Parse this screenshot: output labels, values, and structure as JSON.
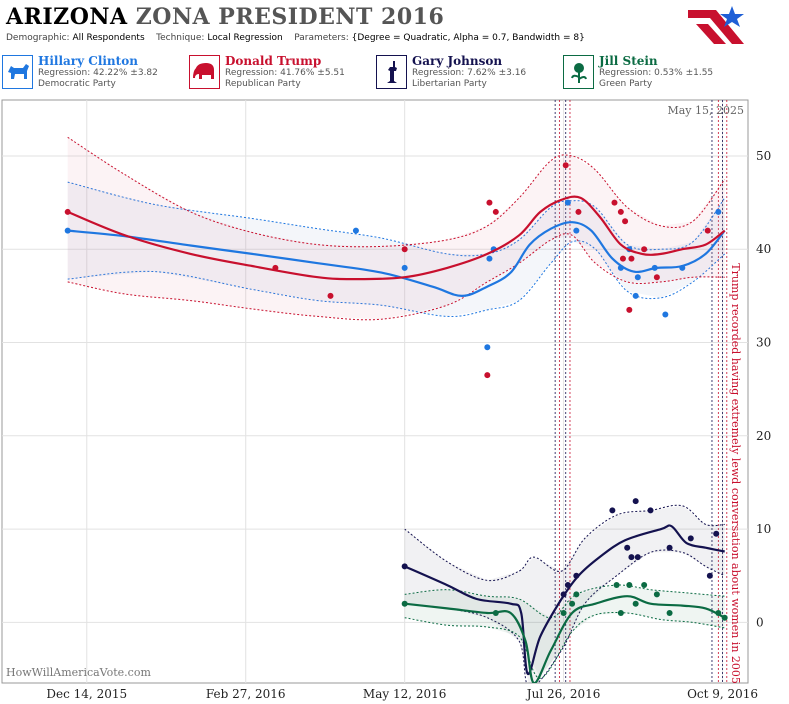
{
  "header": {
    "state": "ARIZONA",
    "title_rest": "ZONA PRESIDENT 2016",
    "demographic_label": "Demographic:",
    "demographic": "All Respondents",
    "technique_label": "Technique:",
    "technique": "Local Regression",
    "parameters_label": "Parameters:",
    "parameters": "{Degree = Quadratic, Alpha = 0.7, Bandwidth = 8}"
  },
  "candidates": [
    {
      "name": "Hillary Clinton",
      "regression": "Regression: 42.22% ±3.82",
      "party": "Democratic Party",
      "color": "#1f77e0",
      "icon": "donkey-icon"
    },
    {
      "name": "Donald Trump",
      "regression": "Regression: 41.76% ±5.51",
      "party": "Republican Party",
      "color": "#c8102e",
      "icon": "elephant-icon"
    },
    {
      "name": "Gary Johnson",
      "regression": "Regression: 7.62% ±3.16",
      "party": "Libertarian Party",
      "color": "#14124f",
      "icon": "liberty-statue-icon"
    },
    {
      "name": "Jill Stein",
      "regression": "Regression: 0.53% ±1.55",
      "party": "Green Party",
      "color": "#0b6b43",
      "icon": "rose-icon"
    }
  ],
  "chart_data": {
    "type": "line",
    "date_label": "May 15, 2025",
    "watermark": "HowWillAmericaVote.com",
    "annotation": "Trump recorded having extremely lewd conversation about women in 2005",
    "x_ticks": [
      {
        "date": "2015-12-14",
        "label": "Dec 14, 2015"
      },
      {
        "date": "2016-02-27",
        "label": "Feb 27, 2016"
      },
      {
        "date": "2016-05-12",
        "label": "May 12, 2016"
      },
      {
        "date": "2016-07-26",
        "label": "Jul 26, 2016"
      },
      {
        "date": "2016-10-09",
        "label": "Oct 9, 2016"
      }
    ],
    "xlim": [
      "2015-11-04",
      "2016-10-21"
    ],
    "ylim": [
      -6.5,
      56
    ],
    "y_ticks": [
      0,
      10,
      20,
      30,
      40,
      50
    ],
    "event_lines": [
      "2016-07-22",
      "2016-07-24",
      "2016-07-27",
      "2016-07-29",
      "2016-10-04",
      "2016-10-07",
      "2016-10-09",
      "2016-10-11"
    ],
    "series": [
      {
        "name": "Hillary Clinton",
        "color": "#1f77e0",
        "band_fill": "rgba(150,170,210,0.10)",
        "trend": [
          [
            "2015-12-05",
            42.0
          ],
          [
            "2016-01-01",
            41.4
          ],
          [
            "2016-02-01",
            40.4
          ],
          [
            "2016-03-01",
            39.5
          ],
          [
            "2016-04-01",
            38.5
          ],
          [
            "2016-05-01",
            37.5
          ],
          [
            "2016-05-25",
            36.0
          ],
          [
            "2016-06-08",
            35.0
          ],
          [
            "2016-06-20",
            36.0
          ],
          [
            "2016-07-01",
            37.5
          ],
          [
            "2016-07-10",
            40.5
          ],
          [
            "2016-07-20",
            42.2
          ],
          [
            "2016-07-30",
            42.9
          ],
          [
            "2016-08-08",
            42.0
          ],
          [
            "2016-08-18",
            39.0
          ],
          [
            "2016-08-28",
            37.6
          ],
          [
            "2016-09-08",
            38.0
          ],
          [
            "2016-09-20",
            38.2
          ],
          [
            "2016-10-01",
            39.5
          ],
          [
            "2016-10-10",
            42.0
          ]
        ],
        "upper": [
          [
            "2015-12-05",
            47.2
          ],
          [
            "2016-01-15",
            44.8
          ],
          [
            "2016-03-01",
            43.3
          ],
          [
            "2016-04-01",
            42.2
          ],
          [
            "2016-05-01",
            41.2
          ],
          [
            "2016-06-01",
            39.5
          ],
          [
            "2016-06-20",
            39.5
          ],
          [
            "2016-07-05",
            41.0
          ],
          [
            "2016-07-20",
            44.5
          ],
          [
            "2016-07-30",
            45.2
          ],
          [
            "2016-08-10",
            44.5
          ],
          [
            "2016-08-25",
            40.5
          ],
          [
            "2016-09-10",
            40.0
          ],
          [
            "2016-09-25",
            40.8
          ],
          [
            "2016-10-10",
            45.5
          ]
        ],
        "lower": [
          [
            "2015-12-05",
            36.8
          ],
          [
            "2016-01-15",
            37.6
          ],
          [
            "2016-03-01",
            35.7
          ],
          [
            "2016-04-01",
            34.5
          ],
          [
            "2016-05-01",
            34.0
          ],
          [
            "2016-06-01",
            32.8
          ],
          [
            "2016-06-20",
            33.5
          ],
          [
            "2016-07-05",
            34.5
          ],
          [
            "2016-07-20",
            38.5
          ],
          [
            "2016-07-30",
            40.8
          ],
          [
            "2016-08-10",
            40.0
          ],
          [
            "2016-08-25",
            35.5
          ],
          [
            "2016-09-10",
            34.8
          ],
          [
            "2016-09-25",
            36.5
          ],
          [
            "2016-10-10",
            39.5
          ]
        ],
        "points": [
          [
            "2015-12-05",
            42.0
          ],
          [
            "2016-04-19",
            42.0
          ],
          [
            "2016-05-12",
            38.0
          ],
          [
            "2016-06-20",
            29.5
          ],
          [
            "2016-06-21",
            39.0
          ],
          [
            "2016-06-23",
            40.0
          ],
          [
            "2016-07-28",
            45.0
          ],
          [
            "2016-08-01",
            42.0
          ],
          [
            "2016-08-22",
            38.0
          ],
          [
            "2016-08-26",
            40.0
          ],
          [
            "2016-08-29",
            35.0
          ],
          [
            "2016-08-30",
            37.0
          ],
          [
            "2016-09-07",
            38.0
          ],
          [
            "2016-09-12",
            33.0
          ],
          [
            "2016-09-20",
            38.0
          ],
          [
            "2016-10-07",
            44.0
          ]
        ]
      },
      {
        "name": "Donald Trump",
        "color": "#c8102e",
        "band_fill": "rgba(220,100,130,0.08)",
        "trend": [
          [
            "2015-12-05",
            44.0
          ],
          [
            "2016-01-01",
            41.5
          ],
          [
            "2016-02-01",
            39.5
          ],
          [
            "2016-03-01",
            38.2
          ],
          [
            "2016-04-01",
            37.0
          ],
          [
            "2016-04-20",
            36.8
          ],
          [
            "2016-05-12",
            37.0
          ],
          [
            "2016-06-01",
            38.0
          ],
          [
            "2016-06-20",
            39.5
          ],
          [
            "2016-07-05",
            41.5
          ],
          [
            "2016-07-15",
            44.0
          ],
          [
            "2016-07-25",
            45.3
          ],
          [
            "2016-08-03",
            45.5
          ],
          [
            "2016-08-12",
            43.5
          ],
          [
            "2016-08-22",
            40.5
          ],
          [
            "2016-09-01",
            39.5
          ],
          [
            "2016-09-10",
            39.5
          ],
          [
            "2016-09-20",
            40.0
          ],
          [
            "2016-10-01",
            40.5
          ],
          [
            "2016-10-10",
            42.0
          ]
        ],
        "upper": [
          [
            "2015-12-05",
            52.0
          ],
          [
            "2016-01-01",
            48.0
          ],
          [
            "2016-02-01",
            44.0
          ],
          [
            "2016-03-01",
            41.8
          ],
          [
            "2016-04-01",
            40.5
          ],
          [
            "2016-05-01",
            40.3
          ],
          [
            "2016-06-01",
            41.0
          ],
          [
            "2016-06-20",
            42.5
          ],
          [
            "2016-07-05",
            45.5
          ],
          [
            "2016-07-20",
            49.5
          ],
          [
            "2016-07-30",
            50.0
          ],
          [
            "2016-08-10",
            48.5
          ],
          [
            "2016-08-25",
            44.5
          ],
          [
            "2016-09-10",
            42.5
          ],
          [
            "2016-09-25",
            43.0
          ],
          [
            "2016-10-10",
            47.5
          ]
        ],
        "lower": [
          [
            "2015-12-05",
            36.5
          ],
          [
            "2016-01-01",
            35.2
          ],
          [
            "2016-02-01",
            34.5
          ],
          [
            "2016-03-01",
            33.6
          ],
          [
            "2016-04-01",
            32.8
          ],
          [
            "2016-05-01",
            32.5
          ],
          [
            "2016-06-01",
            34.0
          ],
          [
            "2016-06-20",
            36.5
          ],
          [
            "2016-07-05",
            38.5
          ],
          [
            "2016-07-20",
            41.0
          ],
          [
            "2016-07-30",
            41.5
          ],
          [
            "2016-08-10",
            38.5
          ],
          [
            "2016-08-25",
            36.5
          ],
          [
            "2016-09-10",
            36.5
          ],
          [
            "2016-09-25",
            37.0
          ],
          [
            "2016-10-10",
            37.0
          ]
        ],
        "points": [
          [
            "2015-12-05",
            44.0
          ],
          [
            "2016-03-12",
            38.0
          ],
          [
            "2016-04-07",
            35.0
          ],
          [
            "2016-05-12",
            40.0
          ],
          [
            "2016-06-21",
            45.0
          ],
          [
            "2016-06-24",
            44.0
          ],
          [
            "2016-06-20",
            26.5
          ],
          [
            "2016-07-27",
            49.0
          ],
          [
            "2016-08-02",
            44.0
          ],
          [
            "2016-08-19",
            45.0
          ],
          [
            "2016-08-22",
            44.0
          ],
          [
            "2016-08-24",
            43.0
          ],
          [
            "2016-08-23",
            39.0
          ],
          [
            "2016-08-27",
            39.0
          ],
          [
            "2016-08-26",
            33.5
          ],
          [
            "2016-09-02",
            40.0
          ],
          [
            "2016-09-08",
            37.0
          ],
          [
            "2016-10-02",
            42.0
          ]
        ]
      },
      {
        "name": "Gary Johnson",
        "color": "#14124f",
        "band_fill": "rgba(60,60,90,0.07)",
        "trend": [
          [
            "2016-05-12",
            6.0
          ],
          [
            "2016-06-01",
            4.0
          ],
          [
            "2016-06-15",
            2.5
          ],
          [
            "2016-07-01",
            2.0
          ],
          [
            "2016-07-06",
            1.0
          ],
          [
            "2016-07-09",
            -5.5
          ],
          [
            "2016-07-15",
            -1.5
          ],
          [
            "2016-07-25",
            2.5
          ],
          [
            "2016-08-02",
            5.0
          ],
          [
            "2016-08-12",
            7.0
          ],
          [
            "2016-08-24",
            8.8
          ],
          [
            "2016-09-10",
            10.0
          ],
          [
            "2016-09-15",
            10.3
          ],
          [
            "2016-09-22",
            8.5
          ],
          [
            "2016-10-01",
            8.0
          ],
          [
            "2016-10-10",
            7.6
          ]
        ],
        "upper": [
          [
            "2016-05-12",
            10.0
          ],
          [
            "2016-06-01",
            6.5
          ],
          [
            "2016-06-20",
            4.5
          ],
          [
            "2016-07-05",
            5.5
          ],
          [
            "2016-07-12",
            7.0
          ],
          [
            "2016-07-25",
            5.5
          ],
          [
            "2016-08-05",
            9.0
          ],
          [
            "2016-08-20",
            11.5
          ],
          [
            "2016-09-05",
            12.0
          ],
          [
            "2016-09-20",
            12.5
          ],
          [
            "2016-10-01",
            10.5
          ],
          [
            "2016-10-10",
            10.5
          ]
        ],
        "lower": [
          [
            "2016-05-12",
            2.0
          ],
          [
            "2016-06-01",
            1.5
          ],
          [
            "2016-06-20",
            0.5
          ],
          [
            "2016-07-05",
            -2.0
          ],
          [
            "2016-07-10",
            -7.0
          ],
          [
            "2016-07-25",
            -3.0
          ],
          [
            "2016-08-05",
            2.0
          ],
          [
            "2016-08-20",
            5.0
          ],
          [
            "2016-09-05",
            7.5
          ],
          [
            "2016-09-20",
            7.5
          ],
          [
            "2016-10-01",
            6.0
          ],
          [
            "2016-10-10",
            5.0
          ]
        ],
        "points": [
          [
            "2016-05-12",
            6.0
          ],
          [
            "2016-07-26",
            3.0
          ],
          [
            "2016-07-28",
            4.0
          ],
          [
            "2016-08-01",
            5.0
          ],
          [
            "2016-08-18",
            12.0
          ],
          [
            "2016-08-25",
            8.0
          ],
          [
            "2016-08-27",
            7.0
          ],
          [
            "2016-08-29",
            13.0
          ],
          [
            "2016-08-30",
            7.0
          ],
          [
            "2016-09-05",
            12.0
          ],
          [
            "2016-09-14",
            8.0
          ],
          [
            "2016-09-24",
            9.0
          ],
          [
            "2016-10-03",
            5.0
          ],
          [
            "2016-10-06",
            9.5
          ]
        ]
      },
      {
        "name": "Jill Stein",
        "color": "#0b6b43",
        "band_fill": "rgba(30,110,70,0.07)",
        "trend": [
          [
            "2016-05-12",
            2.0
          ],
          [
            "2016-06-01",
            1.5
          ],
          [
            "2016-06-20",
            1.0
          ],
          [
            "2016-07-01",
            1.0
          ],
          [
            "2016-07-08",
            -2.0
          ],
          [
            "2016-07-12",
            -6.5
          ],
          [
            "2016-07-20",
            -3.0
          ],
          [
            "2016-07-30",
            1.0
          ],
          [
            "2016-08-10",
            2.0
          ],
          [
            "2016-08-25",
            2.8
          ],
          [
            "2016-09-05",
            2.0
          ],
          [
            "2016-09-20",
            1.8
          ],
          [
            "2016-10-01",
            1.5
          ],
          [
            "2016-10-10",
            0.5
          ]
        ],
        "upper": [
          [
            "2016-05-12",
            3.0
          ],
          [
            "2016-06-01",
            3.5
          ],
          [
            "2016-06-20",
            2.8
          ],
          [
            "2016-07-05",
            2.5
          ],
          [
            "2016-07-20",
            0.5
          ],
          [
            "2016-08-01",
            3.0
          ],
          [
            "2016-08-20",
            4.0
          ],
          [
            "2016-09-05",
            3.5
          ],
          [
            "2016-09-20",
            3.2
          ],
          [
            "2016-10-10",
            2.8
          ]
        ],
        "lower": [
          [
            "2016-05-12",
            0.5
          ],
          [
            "2016-06-01",
            -0.3
          ],
          [
            "2016-06-20",
            -0.5
          ],
          [
            "2016-07-05",
            -1.5
          ],
          [
            "2016-07-15",
            -6.0
          ],
          [
            "2016-07-30",
            -1.0
          ],
          [
            "2016-08-10",
            0.8
          ],
          [
            "2016-08-25",
            1.0
          ],
          [
            "2016-09-10",
            0.3
          ],
          [
            "2016-09-25",
            0.0
          ],
          [
            "2016-10-10",
            -0.6
          ]
        ],
        "points": [
          [
            "2016-05-12",
            2.0
          ],
          [
            "2016-06-24",
            1.0
          ],
          [
            "2016-07-26",
            1.0
          ],
          [
            "2016-07-30",
            2.0
          ],
          [
            "2016-08-01",
            3.0
          ],
          [
            "2016-08-20",
            4.0
          ],
          [
            "2016-08-22",
            1.0
          ],
          [
            "2016-08-26",
            4.0
          ],
          [
            "2016-08-29",
            2.0
          ],
          [
            "2016-09-02",
            4.0
          ],
          [
            "2016-09-08",
            3.0
          ],
          [
            "2016-09-14",
            1.0
          ],
          [
            "2016-10-07",
            1.0
          ],
          [
            "2016-10-10",
            0.5
          ]
        ]
      }
    ]
  }
}
